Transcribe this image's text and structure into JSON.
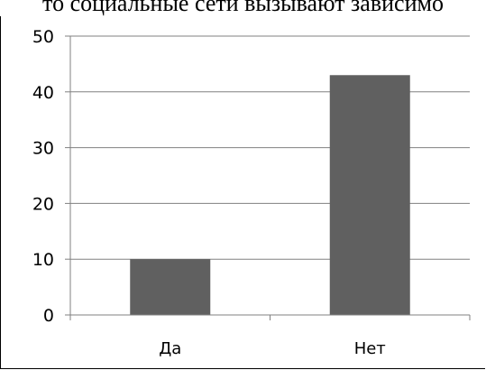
{
  "chart_data": {
    "type": "bar",
    "title": "то социальные сети вызывают зависимо",
    "categories": [
      "Да",
      "Нет"
    ],
    "values": [
      10,
      43
    ],
    "ylim": [
      0,
      50
    ],
    "yticks": [
      0,
      10,
      20,
      30,
      40,
      50
    ],
    "grid": true,
    "legend": "none",
    "bar_color": "#606060",
    "grid_color": "#808080"
  }
}
